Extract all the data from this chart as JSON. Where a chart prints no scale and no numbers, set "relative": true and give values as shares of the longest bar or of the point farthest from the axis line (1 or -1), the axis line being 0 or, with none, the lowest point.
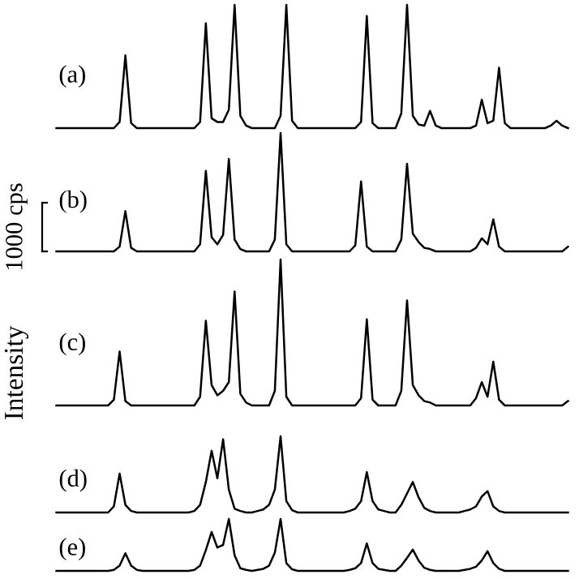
{
  "chart_data": [
    {
      "type": "line",
      "relative": true,
      "color": "#000000",
      "annotations": [
        "(a)"
      ],
      "categories": [
        null,
        null,
        null,
        null,
        null,
        null,
        null,
        null,
        null,
        null,
        null,
        null,
        null,
        null,
        null,
        null,
        null,
        null,
        null,
        null,
        null,
        null,
        null,
        null,
        null,
        null,
        null,
        null,
        null,
        null,
        null,
        null,
        null,
        null,
        null,
        null,
        null,
        null,
        null,
        null,
        null,
        null,
        null,
        null,
        null,
        null,
        null,
        null,
        null,
        null,
        null,
        null,
        null,
        null,
        null,
        null,
        null,
        null,
        null,
        null,
        null,
        null,
        null,
        null,
        null,
        null,
        null,
        null,
        null,
        null,
        null,
        null,
        null,
        null,
        null,
        null,
        null,
        null,
        null,
        null,
        null,
        null,
        null,
        null,
        null,
        null,
        null,
        null,
        null,
        null
      ],
      "values": [
        0,
        0,
        0,
        0,
        0,
        0,
        0,
        0,
        0,
        0,
        0,
        0.05,
        0.59,
        0.04,
        0,
        0,
        0,
        0,
        0,
        0,
        0,
        0,
        0,
        0,
        0,
        0.05,
        0.85,
        0.08,
        0.05,
        0.05,
        0.15,
        1,
        0.1,
        0.02,
        0,
        0,
        0,
        0,
        0,
        0.1,
        1,
        0.06,
        0,
        0,
        0,
        0,
        0,
        0,
        0,
        0,
        0,
        0,
        0,
        0.05,
        0.91,
        0.04,
        0,
        0,
        0,
        0,
        0.12,
        1,
        0.1,
        0.03,
        0.02,
        0.14,
        0.02,
        0,
        0,
        0,
        0,
        0,
        0,
        0.02,
        0.23,
        0.04,
        0.06,
        0.49,
        0.04,
        0,
        0,
        0,
        0,
        0,
        0,
        0,
        0.02,
        0.06,
        0.02,
        0
      ]
    },
    {
      "type": "line",
      "relative": true,
      "color": "#000000",
      "annotations": [
        "(b)",
        "1000 cps"
      ],
      "categories": [
        null,
        null,
        null,
        null,
        null,
        null,
        null,
        null,
        null,
        null,
        null,
        null,
        null,
        null,
        null,
        null,
        null,
        null,
        null,
        null,
        null,
        null,
        null,
        null,
        null,
        null,
        null,
        null,
        null,
        null,
        null,
        null,
        null,
        null,
        null,
        null,
        null,
        null,
        null,
        null,
        null,
        null,
        null,
        null,
        null,
        null,
        null,
        null,
        null,
        null,
        null,
        null,
        null,
        null,
        null,
        null,
        null,
        null,
        null,
        null,
        null,
        null,
        null,
        null,
        null,
        null,
        null,
        null,
        null,
        null,
        null,
        null,
        null,
        null,
        null,
        null,
        null,
        null,
        null,
        null,
        null,
        null,
        null,
        null,
        null,
        null,
        null,
        null,
        null,
        null
      ],
      "values": [
        0,
        0,
        0,
        0,
        0,
        0,
        0,
        0,
        0,
        0,
        0,
        0.04,
        0.34,
        0.03,
        0,
        0,
        0,
        0,
        0,
        0,
        0,
        0,
        0,
        0,
        0,
        0.06,
        0.68,
        0.12,
        0.06,
        0.14,
        0.78,
        0.1,
        0.02,
        0,
        0,
        0,
        0,
        0,
        0.1,
        1,
        0.06,
        0,
        0,
        0,
        0,
        0,
        0,
        0,
        0,
        0,
        0,
        0,
        0.05,
        0.59,
        0.04,
        0,
        0,
        0,
        0,
        0,
        0.1,
        0.74,
        0.15,
        0.08,
        0.03,
        0.02,
        0,
        0,
        0,
        0,
        0,
        0,
        0,
        0.03,
        0.11,
        0.06,
        0.27,
        0.04,
        0,
        0,
        0,
        0,
        0,
        0,
        0,
        0,
        0,
        0,
        0,
        0.04
      ]
    },
    {
      "type": "line",
      "relative": true,
      "color": "#000000",
      "annotations": [
        "(c)"
      ],
      "ylabel": "Intensity",
      "categories": [
        null,
        null,
        null,
        null,
        null,
        null,
        null,
        null,
        null,
        null,
        null,
        null,
        null,
        null,
        null,
        null,
        null,
        null,
        null,
        null,
        null,
        null,
        null,
        null,
        null,
        null,
        null,
        null,
        null,
        null,
        null,
        null,
        null,
        null,
        null,
        null,
        null,
        null,
        null,
        null,
        null,
        null,
        null,
        null,
        null,
        null,
        null,
        null,
        null,
        null,
        null,
        null,
        null,
        null,
        null,
        null,
        null,
        null,
        null,
        null,
        null,
        null,
        null,
        null,
        null,
        null,
        null,
        null,
        null,
        null,
        null,
        null,
        null,
        null,
        null,
        null,
        null,
        null,
        null,
        null,
        null,
        null,
        null,
        null,
        null,
        null,
        null,
        null,
        null,
        null
      ],
      "values": [
        0,
        0,
        0,
        0,
        0,
        0,
        0,
        0,
        0,
        0,
        0.04,
        0.37,
        0.03,
        0,
        0,
        0,
        0,
        0,
        0,
        0,
        0,
        0,
        0,
        0,
        0,
        0.06,
        0.58,
        0.14,
        0.07,
        0.1,
        0.16,
        0.78,
        0.08,
        0.02,
        0,
        0,
        0,
        0,
        0.1,
        1,
        0.06,
        0,
        0,
        0,
        0,
        0,
        0,
        0,
        0,
        0,
        0,
        0,
        0,
        0.05,
        0.59,
        0.04,
        0,
        0,
        0,
        0,
        0.1,
        0.72,
        0.14,
        0.07,
        0.03,
        0.02,
        0,
        0,
        0,
        0,
        0,
        0,
        0,
        0.05,
        0.16,
        0.06,
        0.3,
        0.04,
        0,
        0,
        0,
        0,
        0,
        0,
        0,
        0,
        0,
        0,
        0,
        0.03
      ]
    },
    {
      "type": "line",
      "relative": true,
      "color": "#000000",
      "annotations": [
        "(d)"
      ],
      "categories": [
        null,
        null,
        null,
        null,
        null,
        null,
        null,
        null,
        null,
        null,
        null,
        null,
        null,
        null,
        null,
        null,
        null,
        null,
        null,
        null,
        null,
        null,
        null,
        null,
        null,
        null,
        null,
        null,
        null,
        null,
        null,
        null,
        null,
        null,
        null,
        null,
        null,
        null,
        null,
        null,
        null,
        null,
        null,
        null,
        null,
        null,
        null,
        null,
        null,
        null,
        null,
        null,
        null,
        null,
        null,
        null,
        null,
        null,
        null,
        null,
        null,
        null,
        null,
        null,
        null,
        null,
        null,
        null,
        null,
        null,
        null,
        null,
        null,
        null,
        null,
        null,
        null,
        null,
        null,
        null,
        null,
        null,
        null,
        null,
        null,
        null,
        null,
        null,
        null,
        null
      ],
      "values": [
        0,
        0,
        0,
        0,
        0,
        0,
        0,
        0,
        0,
        0,
        0.08,
        0.51,
        0.1,
        0.02,
        0,
        0,
        0,
        0,
        0,
        0,
        0,
        0,
        0,
        0,
        0.02,
        0.1,
        0.4,
        0.81,
        0.45,
        0.96,
        0.3,
        0.05,
        0.02,
        0,
        0,
        0.02,
        0.04,
        0.1,
        0.3,
        1,
        0.15,
        0.03,
        0,
        0,
        0,
        0,
        0,
        0,
        0,
        0,
        0,
        0.02,
        0.05,
        0.15,
        0.53,
        0.15,
        0.04,
        0.02,
        0,
        0,
        0.1,
        0.25,
        0.4,
        0.2,
        0.06,
        0.02,
        0,
        0,
        0,
        0,
        0,
        0.02,
        0.04,
        0.08,
        0.21,
        0.28,
        0.08,
        0.02,
        0,
        0,
        0,
        0,
        0,
        0,
        0,
        0,
        0,
        0,
        0,
        0
      ]
    },
    {
      "type": "line",
      "relative": true,
      "color": "#000000",
      "annotations": [
        "(e)"
      ],
      "categories": [
        null,
        null,
        null,
        null,
        null,
        null,
        null,
        null,
        null,
        null,
        null,
        null,
        null,
        null,
        null,
        null,
        null,
        null,
        null,
        null,
        null,
        null,
        null,
        null,
        null,
        null,
        null,
        null,
        null,
        null,
        null,
        null,
        null,
        null,
        null,
        null,
        null,
        null,
        null,
        null,
        null,
        null,
        null,
        null,
        null,
        null,
        null,
        null,
        null,
        null,
        null,
        null,
        null,
        null,
        null,
        null,
        null,
        null,
        null,
        null,
        null,
        null,
        null,
        null,
        null,
        null,
        null,
        null,
        null,
        null,
        null,
        null,
        null,
        null,
        null,
        null,
        null,
        null,
        null,
        null,
        null,
        null,
        null,
        null,
        null,
        null,
        null,
        null,
        null,
        null
      ],
      "values": [
        0,
        0,
        0,
        0,
        0,
        0,
        0,
        0,
        0,
        0,
        0.02,
        0.1,
        0.34,
        0.1,
        0.02,
        0,
        0,
        0,
        0,
        0,
        0,
        0,
        0,
        0,
        0.02,
        0.1,
        0.4,
        0.75,
        0.45,
        0.5,
        1,
        0.3,
        0.05,
        0.02,
        0,
        0.02,
        0.04,
        0.1,
        0.35,
        1,
        0.15,
        0.03,
        0,
        0,
        0,
        0,
        0,
        0,
        0,
        0,
        0,
        0.02,
        0.05,
        0.15,
        0.53,
        0.15,
        0.04,
        0.02,
        0,
        0,
        0.1,
        0.25,
        0.41,
        0.2,
        0.06,
        0.02,
        0,
        0,
        0,
        0,
        0,
        0.02,
        0.04,
        0.08,
        0.2,
        0.38,
        0.15,
        0.04,
        0,
        0,
        0,
        0,
        0,
        0,
        0,
        0,
        0,
        0,
        0,
        0
      ]
    }
  ]
}
